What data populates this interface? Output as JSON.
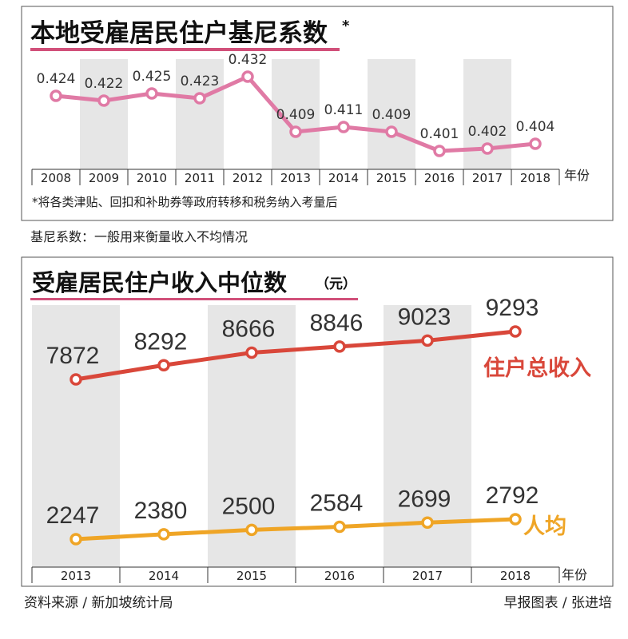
{
  "charts": {
    "gini": {
      "title": "本地受雇居民住户基尼系数",
      "title_mark": "*",
      "axis_unit": "年份",
      "footnote": "*将各类津贴、回扣和补助券等政府转移和税务纳入考量后",
      "definition": "基尼系数：一般用来衡量收入不均情况"
    },
    "income": {
      "title": "受雇居民住户收入中位数",
      "unit": "（元）",
      "axis_unit": "年份"
    }
  },
  "footer": {
    "source": "资料来源 / 新加坡统计局",
    "credit": "早报图表 / 张进培"
  },
  "colors": {
    "gini_line": "#e07aa5",
    "gini_band": "#e6e6e6",
    "income_total": "#d9473a",
    "income_per_capita": "#efa526",
    "income_band": "#e6e6e6",
    "title_underline": "#d1507a"
  },
  "chart_data": [
    {
      "type": "line",
      "title": "本地受雇居民住户基尼系数",
      "xlabel": "年份",
      "ylabel": "",
      "categories": [
        "2008",
        "2009",
        "2010",
        "2011",
        "2012",
        "2013",
        "2014",
        "2015",
        "2016",
        "2017",
        "2018"
      ],
      "series": [
        {
          "values": [
            0.424,
            0.422,
            0.425,
            0.423,
            0.432,
            0.409,
            0.411,
            0.409,
            0.401,
            0.402,
            0.404
          ]
        }
      ],
      "value_labels": [
        "0.424",
        "0.422",
        "0.425",
        "0.423",
        "0.432",
        "0.409",
        "0.411",
        "0.409",
        "0.401",
        "0.402",
        "0.404"
      ],
      "ylim": [
        0.398,
        0.434
      ],
      "grid": false
    },
    {
      "type": "line",
      "title": "受雇居民住户收入中位数",
      "xlabel": "年份",
      "ylabel": "（元）",
      "categories": [
        "2013",
        "2014",
        "2015",
        "2016",
        "2017",
        "2018"
      ],
      "series": [
        {
          "name": "住户总收入",
          "values": [
            7872,
            8292,
            8666,
            8846,
            9023,
            9293
          ]
        },
        {
          "name": "人均",
          "values": [
            2247,
            2380,
            2500,
            2584,
            2699,
            2792
          ]
        }
      ],
      "value_labels": [
        [
          "7872",
          "8292",
          "8666",
          "8846",
          "9023",
          "9293"
        ],
        [
          "2247",
          "2380",
          "2500",
          "2584",
          "2699",
          "2792"
        ]
      ],
      "grid": false
    }
  ]
}
